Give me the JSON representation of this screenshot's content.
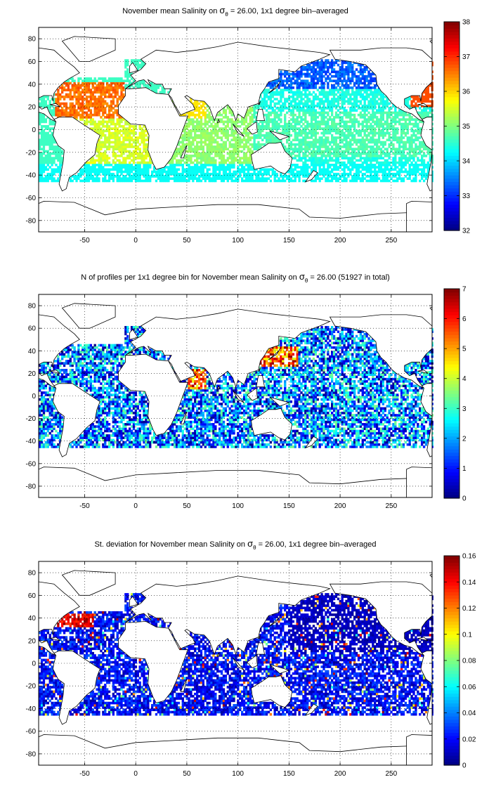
{
  "figure": {
    "panel_count": 3
  },
  "chart_data": [
    {
      "type": "heatmap",
      "title": "November mean Salinity on σθ = 26.00, 1x1 degree bin–averaged",
      "title_parts": {
        "prefix": "November mean Salinity on",
        "sym": "σ",
        "sub": "θ",
        "suffix": " = 26.00, 1x1 degree bin–averaged"
      },
      "xlim": [
        -95,
        290
      ],
      "ylim": [
        -90,
        90
      ],
      "xticks": [
        -50,
        0,
        50,
        100,
        150,
        200,
        250
      ],
      "yticks": [
        -80,
        -60,
        -40,
        -20,
        0,
        20,
        40,
        60,
        80
      ],
      "colorbar": {
        "min": 32,
        "max": 38,
        "ticks": [
          32,
          33,
          34,
          35,
          36,
          37,
          38
        ],
        "colormap": "jet"
      },
      "grid": "dotted",
      "field": "salinity"
    },
    {
      "type": "heatmap",
      "title": "N of profiles per 1x1 degree bin for November mean Salinity on σθ = 26.00 (51927 in total)",
      "title_parts": {
        "prefix": "N of profiles per 1x1 degree bin for November mean Salinity on",
        "sym": "σ",
        "sub": "θ",
        "suffix": " = 26.00 (51927 in total)"
      },
      "xlim": [
        -95,
        290
      ],
      "ylim": [
        -90,
        90
      ],
      "xticks": [
        -50,
        0,
        50,
        100,
        150,
        200,
        250
      ],
      "yticks": [
        -80,
        -60,
        -40,
        -20,
        0,
        20,
        40,
        60,
        80
      ],
      "colorbar": {
        "min": 0,
        "max": 7,
        "ticks": [
          0,
          1,
          2,
          3,
          4,
          5,
          6,
          7
        ],
        "colormap": "jet"
      },
      "grid": "dotted",
      "field": "count",
      "total_profiles": 51927
    },
    {
      "type": "heatmap",
      "title": "St. deviation for November mean Salinity on σθ = 26.00, 1x1 degree bin–averaged",
      "title_parts": {
        "prefix": "St. deviation for November mean Salinity on",
        "sym": "σ",
        "sub": "θ",
        "suffix": " = 26.00, 1x1 degree bin–averaged"
      },
      "xlim": [
        -95,
        290
      ],
      "ylim": [
        -90,
        90
      ],
      "xticks": [
        -50,
        0,
        50,
        100,
        150,
        200,
        250
      ],
      "yticks": [
        -80,
        -60,
        -40,
        -20,
        0,
        20,
        40,
        60,
        80
      ],
      "colorbar": {
        "min": 0,
        "max": 0.16,
        "ticks": [
          0,
          0.02,
          0.04,
          0.06,
          0.08,
          0.1,
          0.12,
          0.14,
          0.16
        ],
        "colormap": "jet"
      },
      "grid": "dotted",
      "field": "stdev"
    }
  ]
}
